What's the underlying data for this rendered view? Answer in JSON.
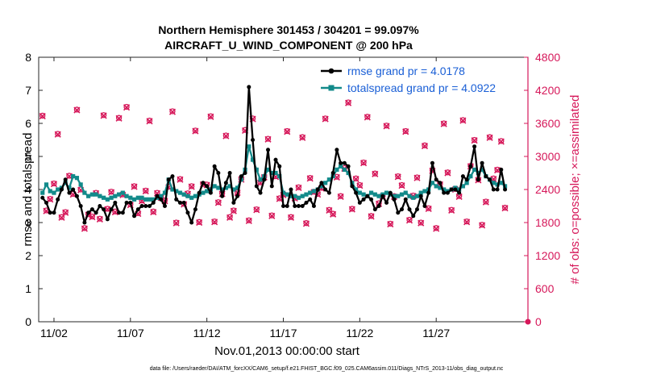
{
  "chart_data": {
    "type": "line",
    "title": "Northern Hemisphere 301453 / 304201 = 99.097%",
    "subtitle": "AIRCRAFT_U_WIND_COMPONENT @ 200 hPa",
    "xlabel": "Nov.01,2013 00:00:00 start",
    "ylabel": "rmse and totalspread",
    "ylabel_right": "# of obs: o=possible; ×=assimilated",
    "footnote": "data file: /Users/raeder/DAI/ATM_forcXX/CAM6_setup/f.e21.FHIST_BGC.f09_025.CAM6assim.011/Diags_NTrS_2013-11/obs_diag_output.nc",
    "xlim": [
      1,
      33
    ],
    "ylim": [
      0,
      8
    ],
    "ylim_right": [
      0,
      4800
    ],
    "x_ticks": [
      2,
      7,
      12,
      17,
      22,
      27
    ],
    "x_tick_labels": [
      "11/02",
      "11/07",
      "11/12",
      "11/17",
      "11/22",
      "11/27"
    ],
    "y_ticks": [
      0,
      1,
      2,
      3,
      4,
      5,
      6,
      7,
      8
    ],
    "y_tick_labels": [
      "0",
      "1",
      "2",
      "3",
      "4",
      "5",
      "6",
      "7",
      "8"
    ],
    "y_ticks_right": [
      0,
      600,
      1200,
      1800,
      2400,
      3000,
      3600,
      4200,
      4800
    ],
    "y_tick_labels_right": [
      "0",
      "600",
      "1200",
      "1800",
      "2400",
      "3000",
      "3600",
      "4200",
      "4800"
    ],
    "legend_position": "top-right",
    "colors": {
      "rmse": "#000000",
      "spread": "#128a8a",
      "obs": "#d6185a",
      "legend_text": "#1a5fd6"
    },
    "series": [
      {
        "name": "rmse",
        "label": "rmse grand pr = 4.0178",
        "x_start": 1.25,
        "dx": 0.25,
        "values": [
          3.75,
          3.6,
          3.3,
          3.3,
          3.7,
          4.0,
          4.3,
          3.9,
          4.0,
          3.8,
          3.5,
          3.0,
          3.3,
          3.4,
          3.3,
          3.5,
          3.4,
          3.1,
          3.4,
          3.6,
          3.3,
          3.3,
          3.6,
          3.6,
          3.2,
          3.4,
          3.5,
          3.5,
          3.5,
          3.6,
          3.8,
          3.7,
          3.5,
          4.3,
          4.4,
          3.7,
          3.6,
          3.6,
          3.3,
          3.0,
          3.4,
          3.9,
          4.2,
          4.1,
          3.9,
          4.7,
          4.5,
          3.8,
          4.2,
          4.5,
          3.6,
          3.8,
          4.4,
          4.5,
          7.1,
          5.5,
          4.1,
          3.9,
          4.3,
          5.2,
          4.1,
          4.9,
          4.7,
          3.5,
          3.5,
          4.0,
          3.5,
          3.5,
          3.5,
          3.6,
          3.7,
          3.5,
          4.0,
          4.2,
          4.0,
          3.9,
          4.5,
          5.2,
          4.8,
          4.8,
          4.7,
          4.1,
          3.9,
          3.6,
          3.7,
          3.8,
          3.7,
          3.4,
          3.5,
          3.8,
          3.6,
          3.9,
          3.7,
          3.3,
          3.4,
          3.7,
          3.4,
          3.2,
          3.4,
          3.8,
          3.5,
          3.9,
          4.8,
          4.3,
          4.2,
          3.9,
          3.9,
          4.0,
          4.0,
          3.9,
          4.4,
          4.3,
          4.7,
          5.3,
          4.3,
          4.8,
          4.4,
          4.3,
          4.0,
          4.0,
          4.6,
          4.0
        ]
      },
      {
        "name": "totalspread",
        "label": "totalspread grand pr = 4.0922",
        "x_start": 1.25,
        "dx": 0.25,
        "values": [
          3.9,
          4.15,
          3.95,
          3.9,
          4.0,
          4.05,
          4.2,
          4.05,
          4.4,
          4.35,
          4.15,
          3.9,
          3.8,
          3.85,
          3.85,
          3.8,
          3.75,
          3.7,
          3.75,
          3.8,
          3.85,
          3.9,
          3.8,
          3.75,
          3.7,
          3.75,
          3.75,
          3.7,
          3.7,
          3.7,
          3.75,
          3.8,
          3.9,
          4.3,
          4.0,
          3.95,
          3.9,
          3.85,
          3.8,
          3.75,
          3.8,
          3.85,
          3.9,
          3.95,
          4.0,
          4.1,
          4.05,
          4.0,
          4.05,
          4.1,
          4.0,
          4.05,
          4.3,
          4.6,
          5.3,
          4.9,
          4.6,
          4.3,
          4.4,
          4.6,
          4.5,
          4.5,
          4.4,
          3.9,
          3.85,
          3.8,
          3.8,
          3.75,
          3.8,
          3.85,
          3.9,
          3.95,
          4.0,
          4.1,
          4.2,
          4.3,
          4.4,
          4.6,
          4.7,
          4.6,
          4.5,
          4.2,
          4.0,
          3.9,
          3.85,
          3.8,
          3.9,
          3.85,
          3.8,
          3.85,
          3.9,
          3.85,
          3.8,
          3.8,
          3.85,
          3.9,
          3.8,
          3.75,
          3.8,
          3.9,
          3.95,
          4.0,
          4.2,
          4.1,
          4.05,
          4.0,
          3.95,
          4.0,
          4.05,
          4.0,
          4.1,
          4.2,
          4.4,
          4.6,
          4.5,
          4.6,
          4.4,
          4.3,
          4.2,
          4.15,
          4.2,
          4.1
        ]
      },
      {
        "name": "obs_possible",
        "marker": "circle",
        "axis": "right",
        "x_start": 1.25,
        "dx": 0.25,
        "values": [
          3740,
          2020,
          2230,
          2510,
          3410,
          1900,
          1990,
          2650,
          2320,
          3850,
          2400,
          1700,
          1950,
          1910,
          2340,
          1870,
          3750,
          2050,
          2360,
          2000,
          3700,
          2310,
          3900,
          2130,
          2460,
          1970,
          2200,
          2380,
          3650,
          2000,
          2340,
          2260,
          2200,
          2450,
          3820,
          1800,
          2590,
          2140,
          2330,
          2460,
          3470,
          1810,
          2500,
          2490,
          3730,
          1820,
          2170,
          2330,
          3380,
          1900,
          2020,
          2350,
          2590,
          3480,
          1840,
          3690,
          2040,
          2530,
          2630,
          3320,
          1930,
          2640,
          2240,
          2310,
          3460,
          1900,
          2250,
          2440,
          3350,
          1790,
          2610,
          2360,
          2320,
          2430,
          3690,
          2030,
          1960,
          2630,
          2280,
          2790,
          3980,
          2050,
          2600,
          2480,
          2890,
          3720,
          1920,
          2690,
          2150,
          2280,
          3560,
          1780,
          2280,
          2640,
          2480,
          3460,
          1850,
          2290,
          2620,
          1800,
          3200,
          2060,
          2750,
          1700,
          2500,
          3600,
          2710,
          2030,
          2410,
          2280,
          3660,
          1820,
          2830,
          3300,
          2580,
          1760,
          2180,
          3350,
          2600,
          2760,
          3280,
          2070
        ]
      },
      {
        "name": "obs_assimilated",
        "marker": "x",
        "axis": "right",
        "x_start": 1.25,
        "dx": 0.25,
        "values": [
          3730,
          2010,
          2220,
          2500,
          3400,
          1890,
          1980,
          2640,
          2310,
          3840,
          2390,
          1690,
          1940,
          1900,
          2330,
          1860,
          3740,
          2040,
          2350,
          1990,
          3690,
          2300,
          3890,
          2120,
          2450,
          1960,
          2190,
          2370,
          3640,
          1990,
          2330,
          2250,
          2190,
          2440,
          3810,
          1790,
          2580,
          2130,
          2320,
          2450,
          3460,
          1800,
          2490,
          2480,
          3720,
          1810,
          2160,
          2320,
          3370,
          1890,
          2010,
          2340,
          2580,
          3470,
          1830,
          3680,
          2030,
          2520,
          2620,
          3310,
          1920,
          2630,
          2230,
          2300,
          3450,
          1890,
          2240,
          2430,
          3340,
          1780,
          2600,
          2350,
          2310,
          2420,
          3680,
          2020,
          1950,
          2620,
          2270,
          2780,
          3970,
          2040,
          2590,
          2470,
          2880,
          3710,
          1910,
          2680,
          2140,
          2270,
          3550,
          1770,
          2270,
          2630,
          2470,
          3450,
          1840,
          2280,
          2610,
          1790,
          3190,
          2050,
          2740,
          1690,
          2490,
          3590,
          2700,
          2020,
          2400,
          2270,
          3650,
          1810,
          2820,
          3290,
          2570,
          1750,
          2170,
          3340,
          2590,
          2750,
          3270,
          2060
        ]
      }
    ],
    "extra_marker": {
      "x": 33,
      "y_right": 0
    }
  }
}
